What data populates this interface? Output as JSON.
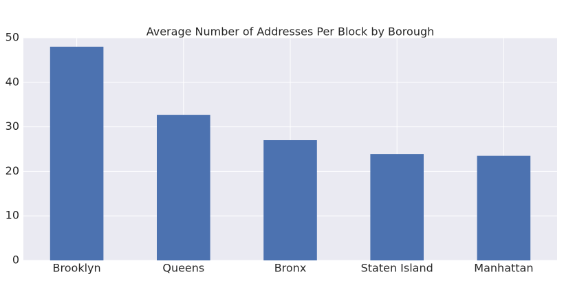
{
  "chart_data": {
    "type": "bar",
    "title": "Average Number of Addresses Per Block by Borough",
    "categories": [
      "Brooklyn",
      "Queens",
      "Bronx",
      "Staten Island",
      "Manhattan"
    ],
    "values": [
      48.0,
      32.7,
      27.0,
      23.9,
      23.5
    ],
    "color": "#4c72b0",
    "ylim": [
      0,
      50
    ],
    "yticks": [
      0,
      10,
      20,
      30,
      40,
      50
    ],
    "grid": true
  }
}
